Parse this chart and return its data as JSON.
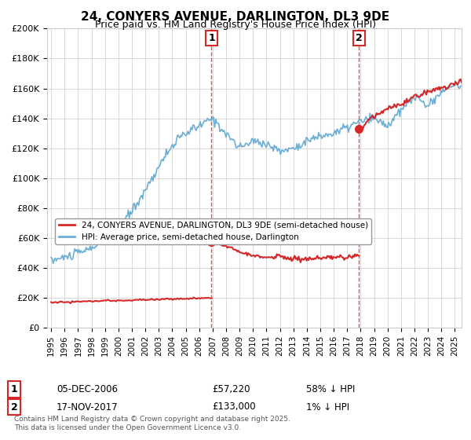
{
  "title": "24, CONYERS AVENUE, DARLINGTON, DL3 9DE",
  "subtitle": "Price paid vs. HM Land Registry's House Price Index (HPI)",
  "legend_line1": "24, CONYERS AVENUE, DARLINGTON, DL3 9DE (semi-detached house)",
  "legend_line2": "HPI: Average price, semi-detached house, Darlington",
  "sale1_date": "05-DEC-2006",
  "sale1_price": 57220,
  "sale1_label": "58% ↓ HPI",
  "sale1_year": 2006.92,
  "sale2_date": "17-NOV-2017",
  "sale2_price": 133000,
  "sale2_label": "1% ↓ HPI",
  "sale2_year": 2017.88,
  "xlabel": "",
  "ylabel": "",
  "ylim": [
    0,
    200000
  ],
  "xlim_start": 1995,
  "xlim_end": 2025.5,
  "footer": "Contains HM Land Registry data © Crown copyright and database right 2025.\nThis data is licensed under the Open Government Licence v3.0.",
  "hpi_color": "#6baed6",
  "price_color": "#d62728",
  "vline_color": "#d62728",
  "background_color": "#ffffff",
  "grid_color": "#cccccc"
}
